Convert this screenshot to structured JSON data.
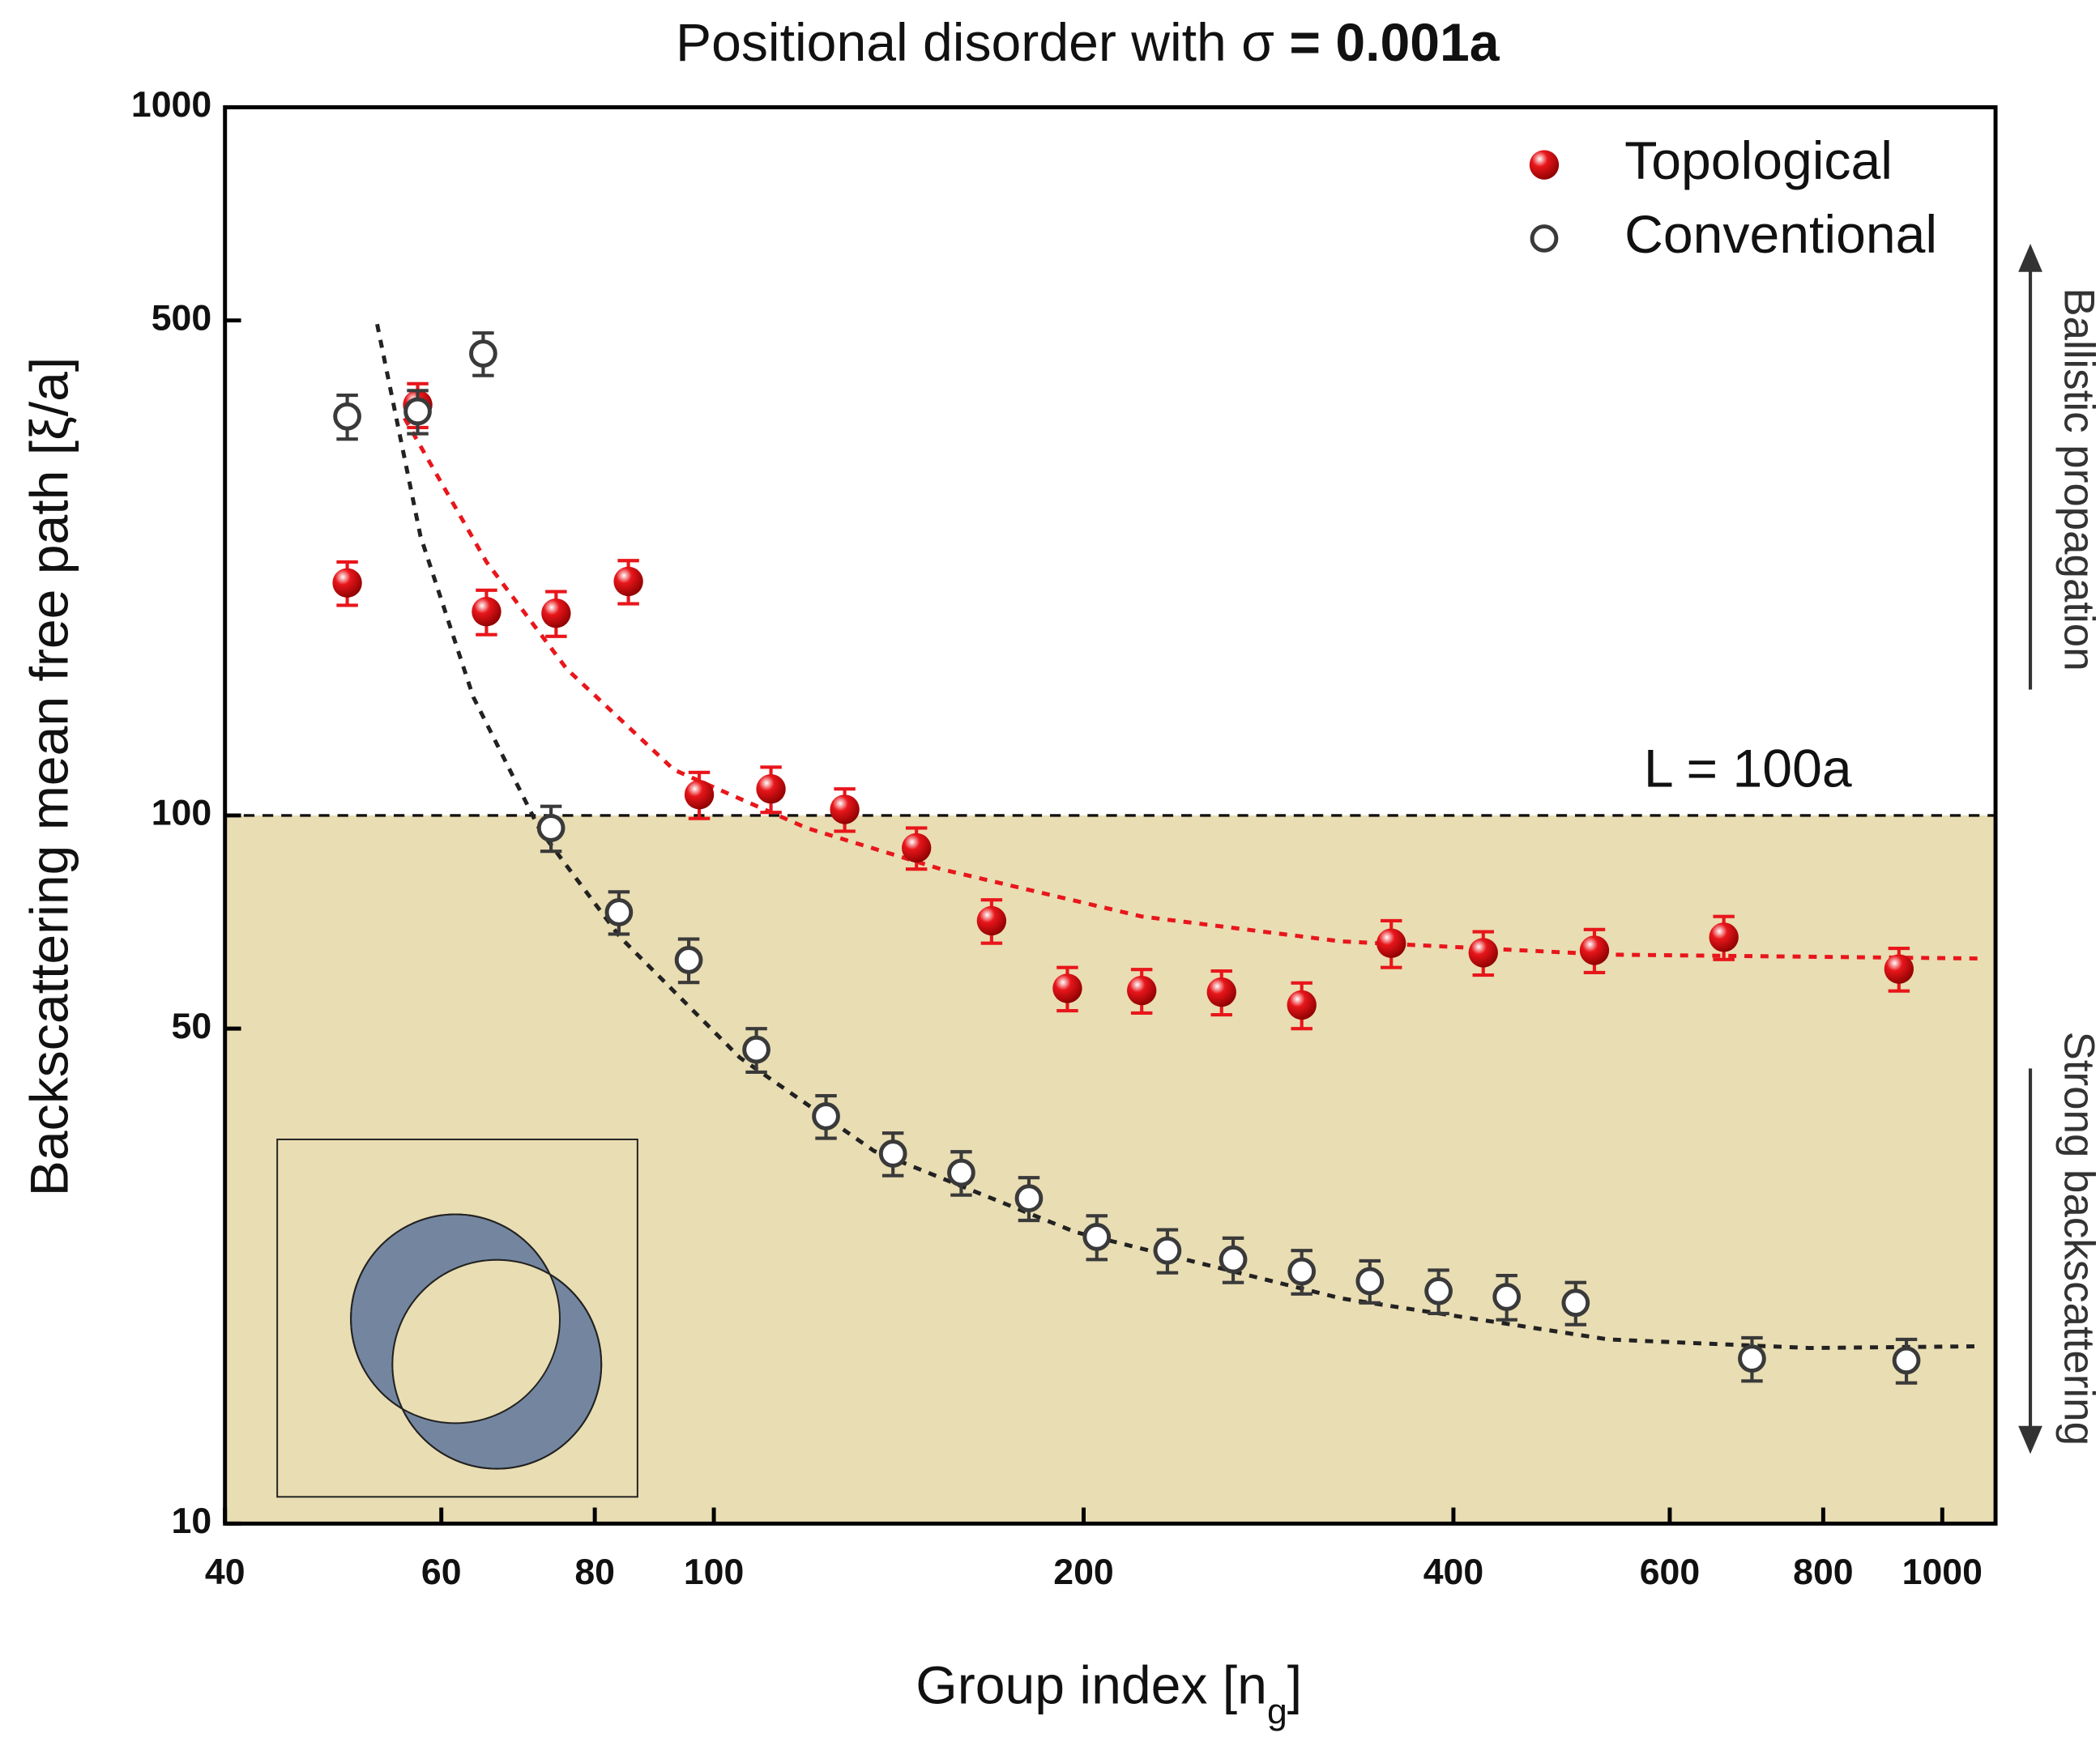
{
  "chart_data": {
    "type": "scatter",
    "title_parts": [
      "Positional disorder with σ",
      "= 0.001a"
    ],
    "y_label": "Backscattering mean free path [ξ/a]",
    "x_label_parts": [
      "Group index [n",
      "g",
      "]"
    ],
    "annotations": [
      "Ballistic propagation",
      "Strong backscattering"
    ],
    "reference_line": {
      "value": 100,
      "label": "L = 100a",
      "shade_below": true,
      "shade_color": "#e9ddb3"
    },
    "x_scale": "log",
    "y_scale": "log",
    "xlim": [
      40,
      1105
    ],
    "ylim": [
      10,
      1000
    ],
    "xticks": [
      40,
      60,
      80,
      100,
      200,
      400,
      600,
      800,
      1000
    ],
    "yticks": [
      10,
      50,
      100,
      500,
      1000
    ],
    "legend": "top-right",
    "series": [
      {
        "name": "Topological",
        "color": "#e8161b",
        "marker": "filled",
        "x": [
          50.3,
          57.4,
          65.3,
          74.4,
          85.2,
          97.3,
          111.3,
          127.8,
          146.2,
          168.3,
          194,
          223,
          259,
          301,
          356,
          423,
          521,
          664,
          922
        ],
        "values": [
          213,
          380,
          194,
          193,
          214,
          107,
          109,
          102,
          90,
          71,
          57,
          56.6,
          56.3,
          54,
          66,
          64,
          64.5,
          67.3,
          60.7
        ],
        "errors": [
          15,
          27,
          14,
          14,
          15,
          8,
          8,
          7,
          6,
          5,
          4,
          4,
          4,
          4,
          5,
          4.5,
          4.5,
          4.7,
          4.2
        ]
      },
      {
        "name": "Conventional",
        "color": "#3a3a3a",
        "marker": "open",
        "x": [
          50.3,
          57.4,
          64.9,
          73.7,
          83.7,
          95.4,
          108.3,
          123.4,
          139.9,
          159,
          180.5,
          205,
          234,
          264.7,
          301,
          342,
          389,
          442,
          503,
          700,
          935
        ],
        "values": [
          366,
          372,
          449,
          96,
          73,
          62.5,
          46.7,
          37.6,
          33.3,
          31.3,
          28.8,
          25.4,
          24.3,
          23.6,
          22.7,
          22,
          21.3,
          20.9,
          20.5,
          17.1,
          17
        ],
        "errors": [
          26,
          26,
          31,
          7,
          5,
          4.4,
          3.3,
          2.6,
          2.3,
          2.2,
          2,
          1.8,
          1.7,
          1.7,
          1.6,
          1.5,
          1.5,
          1.5,
          1.4,
          1.2,
          1.2
        ]
      }
    ],
    "fits": [
      {
        "color": "#e8161b",
        "x": [
          56,
          65.3,
          75.9,
          92.8,
          119,
          153,
          223,
          324,
          535,
          1075
        ],
        "values": [
          364,
          228,
          161,
          116,
          96,
          84,
          72,
          66.4,
          63.6,
          62.8
        ]
      },
      {
        "color": "#222222",
        "x": [
          53.2,
          57.7,
          63.7,
          72.2,
          83.9,
          105,
          135,
          197,
          324,
          535,
          780,
          1075
        ],
        "values": [
          494,
          248,
          147,
          95.3,
          67.3,
          45.5,
          33.6,
          25.8,
          20.8,
          18.2,
          17.7,
          17.8
        ]
      }
    ]
  }
}
